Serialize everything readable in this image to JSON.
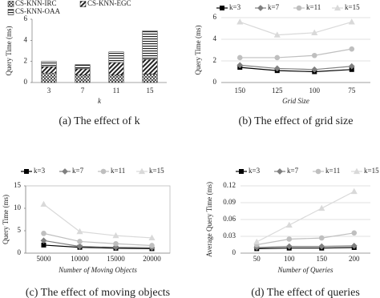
{
  "chart_data": [
    {
      "type": "bar",
      "stacked": true,
      "caption": "(a)  The effect of k",
      "xlabel": "k",
      "ylabel": "Query Time (ms)",
      "categories": [
        "3",
        "7",
        "11",
        "15"
      ],
      "ylim": [
        0,
        6
      ],
      "yticks": [
        0,
        2,
        4,
        6
      ],
      "grid": false,
      "legend": "top-left",
      "series": [
        {
          "name": "CS-KNN-IRC",
          "color": "#222222",
          "pattern": "dots",
          "values": [
            0.9,
            0.7,
            0.7,
            0.8
          ]
        },
        {
          "name": "CS-KNN-EGC",
          "color": "#222222",
          "pattern": "diagonal",
          "values": [
            0.6,
            0.6,
            1.2,
            1.4
          ]
        },
        {
          "name": "CS-KNN-OAA",
          "color": "#222222",
          "pattern": "horizontal",
          "values": [
            0.5,
            0.4,
            1.0,
            2.7
          ]
        }
      ]
    },
    {
      "type": "line",
      "caption": "(b)  The effect of grid size",
      "xlabel": "Grid Size",
      "ylabel": "Query Time (ms)",
      "categories": [
        "150",
        "125",
        "100",
        "75"
      ],
      "ylim": [
        0,
        6
      ],
      "yticks": [
        0,
        2,
        4,
        6
      ],
      "grid": true,
      "legend": "top",
      "series": [
        {
          "name": "k=3",
          "color": "#000000",
          "marker": "square",
          "values": [
            1.4,
            1.1,
            1.0,
            1.2
          ]
        },
        {
          "name": "k=7",
          "color": "#7f7f7f",
          "marker": "diamond",
          "values": [
            1.6,
            1.3,
            1.2,
            1.5
          ]
        },
        {
          "name": "k=11",
          "color": "#bfbfbf",
          "marker": "circle",
          "values": [
            2.3,
            2.3,
            2.5,
            3.1
          ]
        },
        {
          "name": "k=15",
          "color": "#d9d9d9",
          "marker": "triangle",
          "values": [
            5.6,
            4.4,
            4.6,
            5.6
          ]
        }
      ]
    },
    {
      "type": "line",
      "caption": "(c)  The effect of moving objects",
      "xlabel": "Number of Moving Objects",
      "ylabel": "Query Time (ms)",
      "categories": [
        "5000",
        "10000",
        "15000",
        "20000"
      ],
      "ylim": [
        0,
        15
      ],
      "yticks": [
        0,
        5,
        10,
        15
      ],
      "grid": false,
      "frame": true,
      "legend": "top",
      "series": [
        {
          "name": "k=3",
          "color": "#000000",
          "marker": "square",
          "values": [
            1.8,
            1.3,
            1.1,
            1.0
          ]
        },
        {
          "name": "k=7",
          "color": "#7f7f7f",
          "marker": "diamond",
          "values": [
            2.8,
            1.5,
            1.3,
            1.2
          ]
        },
        {
          "name": "k=11",
          "color": "#bfbfbf",
          "marker": "circle",
          "values": [
            4.4,
            2.6,
            2.1,
            1.7
          ]
        },
        {
          "name": "k=15",
          "color": "#d9d9d9",
          "marker": "triangle",
          "values": [
            10.9,
            4.8,
            3.9,
            3.4
          ]
        }
      ]
    },
    {
      "type": "line",
      "caption": "(d)  The effect of queries",
      "xlabel": "Number of Queries",
      "ylabel": "Average Query Time (ms)",
      "categories": [
        "50",
        "100",
        "150",
        "200"
      ],
      "ylim": [
        0,
        0.12
      ],
      "yticks": [
        0,
        0.03,
        0.06,
        0.09,
        0.12
      ],
      "grid": true,
      "legend": "top",
      "series": [
        {
          "name": "k=3",
          "color": "#000000",
          "marker": "square",
          "values": [
            0.008,
            0.009,
            0.009,
            0.01
          ]
        },
        {
          "name": "k=7",
          "color": "#7f7f7f",
          "marker": "diamond",
          "values": [
            0.01,
            0.012,
            0.012,
            0.013
          ]
        },
        {
          "name": "k=11",
          "color": "#bfbfbf",
          "marker": "circle",
          "values": [
            0.015,
            0.025,
            0.027,
            0.036
          ]
        },
        {
          "name": "k=15",
          "color": "#d9d9d9",
          "marker": "triangle",
          "values": [
            0.02,
            0.05,
            0.08,
            0.11
          ]
        }
      ]
    }
  ]
}
